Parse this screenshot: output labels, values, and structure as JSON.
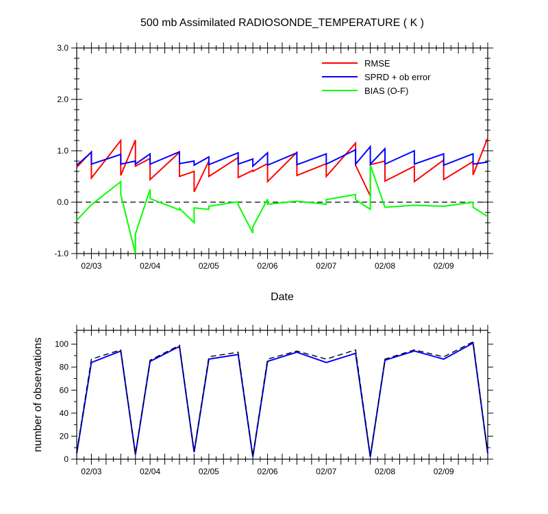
{
  "chart_data": [
    {
      "type": "line",
      "title": "500 mb Assimilated RADIOSONDE_TEMPERATURE ( K )",
      "xlabel": "Date",
      "ylabel": "",
      "xlim": [
        0,
        7
      ],
      "ylim": [
        -1.0,
        3.0
      ],
      "yticks": [
        "-1.0",
        "0.0",
        "1.0",
        "2.0",
        "3.0"
      ],
      "ytick_values": [
        -1.0,
        0.0,
        1.0,
        2.0,
        3.0
      ],
      "xtick_labels": [
        "02/03",
        "02/04",
        "02/05",
        "02/06",
        "02/07",
        "02/08",
        "02/09"
      ],
      "xtick_values": [
        0.25,
        1.25,
        2.25,
        3.25,
        4.25,
        5.25,
        6.25
      ],
      "zero_line": 0.0,
      "legend_position": "top-right",
      "series": [
        {
          "name": "RMSE",
          "color": "#ff0000",
          "x": [
            0,
            0.25,
            0.25,
            0.75,
            0.75,
            1.0,
            1.0,
            1.25,
            1.25,
            1.75,
            1.75,
            2.0,
            2.0,
            2.25,
            2.25,
            2.75,
            2.75,
            3.0,
            3.0,
            3.25,
            3.25,
            3.75,
            3.75,
            4.25,
            4.25,
            4.75,
            4.75,
            5.0,
            5.0,
            5.25,
            5.25,
            5.75,
            5.75,
            6.25,
            6.25,
            6.75,
            6.75,
            7.0
          ],
          "y": [
            0.68,
            0.98,
            0.47,
            1.2,
            0.52,
            1.21,
            0.7,
            0.85,
            0.44,
            0.97,
            0.5,
            0.6,
            0.2,
            0.8,
            0.5,
            0.87,
            0.48,
            0.62,
            0.6,
            0.75,
            0.4,
            0.97,
            0.52,
            0.75,
            0.5,
            1.15,
            0.72,
            0.12,
            0.73,
            0.8,
            0.41,
            0.7,
            0.4,
            0.82,
            0.44,
            0.79,
            0.53,
            1.25
          ]
        },
        {
          "name": "SPRD + ob error",
          "color": "#0000ff",
          "x": [
            0,
            0.25,
            0.25,
            0.75,
            0.75,
            1.0,
            1.0,
            1.25,
            1.25,
            1.75,
            1.75,
            2.0,
            2.0,
            2.25,
            2.25,
            2.75,
            2.75,
            3.0,
            3.0,
            3.25,
            3.25,
            3.75,
            3.75,
            4.25,
            4.25,
            4.75,
            4.75,
            5.0,
            5.0,
            5.25,
            5.25,
            5.75,
            5.75,
            6.25,
            6.25,
            6.75,
            6.75,
            7.0
          ],
          "y": [
            0.72,
            0.97,
            0.74,
            0.93,
            0.74,
            0.8,
            0.74,
            0.94,
            0.74,
            0.98,
            0.75,
            0.8,
            0.72,
            0.88,
            0.73,
            0.96,
            0.74,
            0.84,
            0.7,
            0.96,
            0.72,
            0.96,
            0.73,
            0.94,
            0.74,
            1.02,
            0.74,
            1.08,
            0.74,
            1.04,
            0.74,
            1.0,
            0.74,
            0.94,
            0.72,
            0.94,
            0.74,
            0.78
          ]
        },
        {
          "name": "BIAS (O-F)",
          "color": "#00ff00",
          "x": [
            0,
            0.25,
            0.25,
            0.75,
            0.75,
            1.0,
            1.0,
            1.25,
            1.25,
            1.75,
            1.75,
            2.0,
            2.0,
            2.25,
            2.25,
            2.75,
            2.75,
            3.0,
            3.0,
            3.25,
            3.25,
            3.75,
            3.75,
            4.25,
            4.25,
            4.75,
            4.75,
            5.0,
            5.0,
            5.25,
            5.25,
            5.75,
            5.75,
            6.25,
            6.25,
            6.75,
            6.75,
            7.0
          ],
          "y": [
            -0.35,
            -0.05,
            -0.05,
            0.4,
            0.15,
            -1.0,
            -0.62,
            0.25,
            0.07,
            -0.15,
            -0.12,
            -0.4,
            -0.11,
            -0.14,
            -0.08,
            0.01,
            -0.05,
            -0.6,
            -0.48,
            0.06,
            -0.04,
            0.02,
            0.02,
            -0.04,
            0.05,
            0.15,
            0.05,
            -0.14,
            0.72,
            -0.1,
            -0.1,
            -0.06,
            -0.06,
            -0.08,
            -0.08,
            0.0,
            -0.1,
            -0.28
          ]
        }
      ]
    },
    {
      "type": "line",
      "title": "",
      "xlabel": "",
      "ylabel": "number of observations",
      "xlim": [
        0,
        7
      ],
      "ylim": [
        0,
        112
      ],
      "yticks": [
        "0",
        "20",
        "40",
        "60",
        "80",
        "100"
      ],
      "ytick_values": [
        0,
        20,
        40,
        60,
        80,
        100
      ],
      "xtick_labels": [
        "02/03",
        "02/04",
        "02/05",
        "02/06",
        "02/07",
        "02/08",
        "02/09"
      ],
      "xtick_values": [
        0.25,
        1.25,
        2.25,
        3.25,
        4.25,
        5.25,
        6.25
      ],
      "series": [
        {
          "color": "#0000ff",
          "style": "solid",
          "x": [
            0,
            0.25,
            0.75,
            1.0,
            1.25,
            1.75,
            2.0,
            2.25,
            2.75,
            3.0,
            3.25,
            3.75,
            4.25,
            4.75,
            5.0,
            5.25,
            5.75,
            6.25,
            6.75,
            7.0
          ],
          "y": [
            5,
            84,
            94,
            4,
            85,
            98,
            6,
            87,
            91,
            2,
            85,
            93,
            84,
            92,
            2,
            86,
            94,
            87,
            101,
            5
          ]
        },
        {
          "color": "#000000",
          "style": "dashed",
          "x": [
            0,
            0.25,
            0.75,
            1.0,
            1.25,
            1.75,
            2.0,
            2.25,
            2.75,
            3.0,
            3.25,
            3.75,
            4.25,
            4.75,
            5.0,
            5.25,
            5.75,
            6.25,
            6.75,
            7.0
          ],
          "y": [
            6,
            87,
            95,
            5,
            86,
            99,
            7,
            89,
            93,
            3,
            87,
            94,
            87,
            95,
            3,
            87,
            95,
            89,
            102,
            6
          ]
        }
      ]
    }
  ]
}
